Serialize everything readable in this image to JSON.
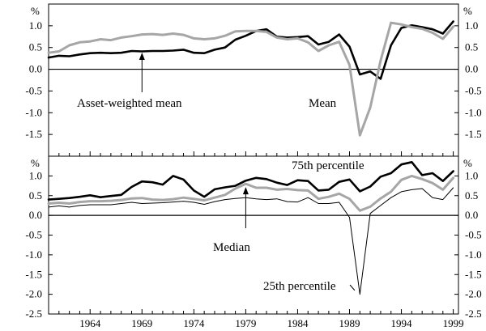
{
  "chart_data": [
    {
      "type": "line",
      "panel": "top",
      "unit_label": "%",
      "ylim": [
        -2.0,
        1.5
      ],
      "yticks": [
        -2.0,
        -1.5,
        -1.0,
        -0.5,
        0.0,
        0.5,
        1.0
      ],
      "ytick_labels": [
        "",
        "-1.5",
        "-1.0",
        "-0.5",
        "0.0",
        "0.5",
        "1.0"
      ],
      "xlim": [
        1960,
        1999.5
      ],
      "xticks": [
        1964,
        1969,
        1974,
        1979,
        1984,
        1989,
        1994,
        1999
      ],
      "grid": false,
      "legend": "none",
      "annotations": [
        {
          "id": "asset-weighted-mean",
          "text": "Asset-weighted mean",
          "x": 1969,
          "y": 0.42
        },
        {
          "id": "mean",
          "text": "Mean"
        }
      ],
      "series": [
        {
          "name": "Asset-weighted mean",
          "color": "#000000",
          "x": [
            1960,
            1961,
            1962,
            1963,
            1964,
            1965,
            1966,
            1967,
            1968,
            1969,
            1970,
            1971,
            1972,
            1973,
            1974,
            1975,
            1976,
            1977,
            1978,
            1979,
            1980,
            1981,
            1982,
            1983,
            1984,
            1985,
            1986,
            1987,
            1988,
            1989,
            1990,
            1991,
            1992,
            1993,
            1994,
            1995,
            1996,
            1997,
            1998,
            1999
          ],
          "values": [
            0.27,
            0.31,
            0.3,
            0.34,
            0.37,
            0.38,
            0.37,
            0.38,
            0.42,
            0.41,
            0.42,
            0.42,
            0.43,
            0.45,
            0.38,
            0.37,
            0.45,
            0.5,
            0.68,
            0.77,
            0.88,
            0.92,
            0.75,
            0.73,
            0.74,
            0.76,
            0.57,
            0.63,
            0.8,
            0.52,
            -0.12,
            -0.05,
            -0.22,
            0.55,
            0.95,
            1.01,
            0.97,
            0.92,
            0.82,
            1.1
          ]
        },
        {
          "name": "Mean",
          "color": "#a6a6a6",
          "x": [
            1960,
            1961,
            1962,
            1963,
            1964,
            1965,
            1966,
            1967,
            1968,
            1969,
            1970,
            1971,
            1972,
            1973,
            1974,
            1975,
            1976,
            1977,
            1978,
            1979,
            1980,
            1981,
            1982,
            1983,
            1984,
            1985,
            1986,
            1987,
            1988,
            1989,
            1990,
            1991,
            1992,
            1993,
            1994,
            1995,
            1996,
            1997,
            1998,
            1999
          ],
          "values": [
            0.38,
            0.41,
            0.55,
            0.62,
            0.64,
            0.69,
            0.67,
            0.73,
            0.76,
            0.8,
            0.81,
            0.79,
            0.82,
            0.79,
            0.71,
            0.69,
            0.71,
            0.77,
            0.87,
            0.88,
            0.88,
            0.86,
            0.73,
            0.69,
            0.71,
            0.62,
            0.42,
            0.55,
            0.63,
            0.1,
            -1.52,
            -0.88,
            0.2,
            1.07,
            1.03,
            0.97,
            0.93,
            0.84,
            0.7,
            0.98
          ]
        }
      ]
    },
    {
      "type": "line",
      "panel": "bottom",
      "unit_label": "%",
      "ylim": [
        -2.5,
        1.5
      ],
      "yticks": [
        -2.5,
        -2.0,
        -1.5,
        -1.0,
        -0.5,
        0.0,
        0.5,
        1.0
      ],
      "ytick_labels": [
        "-2.5",
        "-2.0",
        "-1.5",
        "-1.0",
        "-0.5",
        "0.0",
        "0.5",
        "1.0"
      ],
      "xlim": [
        1960,
        1999.5
      ],
      "xticks": [
        1964,
        1969,
        1974,
        1979,
        1984,
        1989,
        1994,
        1999
      ],
      "xtick_labels": [
        "1964",
        "1969",
        "1974",
        "1979",
        "1984",
        "1989",
        "1994",
        "1999"
      ],
      "grid": false,
      "legend": "none",
      "annotations": [
        {
          "id": "75th-percentile",
          "text": "75th percentile"
        },
        {
          "id": "median",
          "text": "Median",
          "x": 1979,
          "y": 0.76
        },
        {
          "id": "25th-percentile",
          "text": "25th percentile",
          "x": 1989.5,
          "y": -1.9
        }
      ],
      "series": [
        {
          "name": "75th percentile",
          "color": "#000000",
          "x": [
            1960,
            1961,
            1962,
            1963,
            1964,
            1965,
            1966,
            1967,
            1968,
            1969,
            1970,
            1971,
            1972,
            1973,
            1974,
            1975,
            1976,
            1977,
            1978,
            1979,
            1980,
            1981,
            1982,
            1983,
            1984,
            1985,
            1986,
            1987,
            1988,
            1989,
            1990,
            1991,
            1992,
            1993,
            1994,
            1995,
            1996,
            1997,
            1998,
            1999
          ],
          "values": [
            0.4,
            0.42,
            0.44,
            0.47,
            0.51,
            0.46,
            0.49,
            0.52,
            0.72,
            0.86,
            0.84,
            0.78,
            1.0,
            0.91,
            0.63,
            0.47,
            0.66,
            0.71,
            0.75,
            0.88,
            0.95,
            0.92,
            0.83,
            0.77,
            0.89,
            0.87,
            0.63,
            0.65,
            0.85,
            0.91,
            0.61,
            0.73,
            0.98,
            1.07,
            1.29,
            1.35,
            1.02,
            1.07,
            0.87,
            1.12
          ]
        },
        {
          "name": "Median",
          "color": "#a6a6a6",
          "x": [
            1960,
            1961,
            1962,
            1963,
            1964,
            1965,
            1966,
            1967,
            1968,
            1969,
            1970,
            1971,
            1972,
            1973,
            1974,
            1975,
            1976,
            1977,
            1978,
            1979,
            1980,
            1981,
            1982,
            1983,
            1984,
            1985,
            1986,
            1987,
            1988,
            1989,
            1990,
            1991,
            1992,
            1993,
            1994,
            1995,
            1996,
            1997,
            1998,
            1999
          ],
          "values": [
            0.3,
            0.32,
            0.3,
            0.34,
            0.36,
            0.36,
            0.37,
            0.39,
            0.43,
            0.44,
            0.4,
            0.39,
            0.41,
            0.45,
            0.42,
            0.38,
            0.45,
            0.52,
            0.68,
            0.8,
            0.7,
            0.7,
            0.65,
            0.67,
            0.64,
            0.63,
            0.42,
            0.47,
            0.55,
            0.42,
            0.12,
            0.22,
            0.43,
            0.6,
            0.9,
            1.0,
            0.92,
            0.82,
            0.65,
            0.95
          ]
        },
        {
          "name": "25th percentile",
          "color": "#000000",
          "x": [
            1960,
            1961,
            1962,
            1963,
            1964,
            1965,
            1966,
            1967,
            1968,
            1969,
            1970,
            1971,
            1972,
            1973,
            1974,
            1975,
            1976,
            1977,
            1978,
            1979,
            1980,
            1981,
            1982,
            1983,
            1984,
            1985,
            1986,
            1987,
            1988,
            1989,
            1990,
            1991,
            1992,
            1993,
            1994,
            1995,
            1996,
            1997,
            1998,
            1999
          ],
          "values": [
            0.21,
            0.24,
            0.21,
            0.25,
            0.27,
            0.27,
            0.27,
            0.3,
            0.33,
            0.3,
            0.31,
            0.32,
            0.34,
            0.36,
            0.33,
            0.28,
            0.35,
            0.4,
            0.43,
            0.45,
            0.42,
            0.4,
            0.42,
            0.35,
            0.34,
            0.45,
            0.3,
            0.3,
            0.33,
            -0.05,
            -2.0,
            0.05,
            0.25,
            0.45,
            0.6,
            0.65,
            0.68,
            0.45,
            0.4,
            0.7
          ]
        }
      ]
    }
  ]
}
